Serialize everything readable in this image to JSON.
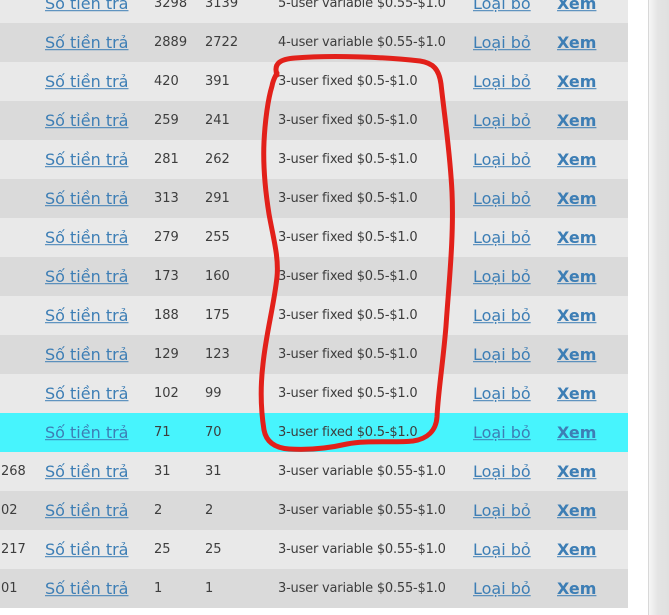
{
  "colors": {
    "row_light": "#e9e9e9",
    "row_dark": "#dadada",
    "row_highlight_cyan": "#47f4fd",
    "link_blue": "#3d7eb5",
    "text_dark": "#3d3d3d",
    "annotation_red": "#e2201a",
    "page_background": "#ffffff"
  },
  "table": {
    "pay_link_label": "Số tiền trả",
    "remove_link_label": "Loại bỏ",
    "view_link_label": "Xem",
    "rows": [
      {
        "left_value": "",
        "num1": "3298",
        "num2": "3139",
        "plan": "5-user variable $0.55-$1.0",
        "bg": "light",
        "selected": false
      },
      {
        "left_value": "",
        "num1": "2889",
        "num2": "2722",
        "plan": "4-user variable $0.55-$1.0",
        "bg": "dark",
        "selected": false
      },
      {
        "left_value": "",
        "num1": "420",
        "num2": "391",
        "plan": "3-user fixed $0.5-$1.0",
        "bg": "light",
        "selected": false
      },
      {
        "left_value": "",
        "num1": "259",
        "num2": "241",
        "plan": "3-user fixed $0.5-$1.0",
        "bg": "dark",
        "selected": false
      },
      {
        "left_value": "",
        "num1": "281",
        "num2": "262",
        "plan": "3-user fixed $0.5-$1.0",
        "bg": "light",
        "selected": false
      },
      {
        "left_value": "",
        "num1": "313",
        "num2": "291",
        "plan": "3-user fixed $0.5-$1.0",
        "bg": "dark",
        "selected": false
      },
      {
        "left_value": "",
        "num1": "279",
        "num2": "255",
        "plan": "3-user fixed $0.5-$1.0",
        "bg": "light",
        "selected": false
      },
      {
        "left_value": "",
        "num1": "173",
        "num2": "160",
        "plan": "3-user fixed $0.5-$1.0",
        "bg": "dark",
        "selected": false
      },
      {
        "left_value": "",
        "num1": "188",
        "num2": "175",
        "plan": "3-user fixed $0.5-$1.0",
        "bg": "light",
        "selected": false
      },
      {
        "left_value": "",
        "num1": "129",
        "num2": "123",
        "plan": "3-user fixed $0.5-$1.0",
        "bg": "dark",
        "selected": false
      },
      {
        "left_value": "",
        "num1": "102",
        "num2": "99",
        "plan": "3-user fixed $0.5-$1.0",
        "bg": "light",
        "selected": false
      },
      {
        "left_value": "",
        "num1": "71",
        "num2": "70",
        "plan": "3-user fixed $0.5-$1.0",
        "bg": "highlight",
        "selected": true
      },
      {
        "left_value": "268",
        "num1": "31",
        "num2": "31",
        "plan": "3-user variable $0.55-$1.0",
        "bg": "light",
        "selected": false
      },
      {
        "left_value": "02",
        "num1": "2",
        "num2": "2",
        "plan": "3-user variable $0.55-$1.0",
        "bg": "dark",
        "selected": false
      },
      {
        "left_value": "217",
        "num1": "25",
        "num2": "25",
        "plan": "3-user variable $0.55-$1.0",
        "bg": "light",
        "selected": false
      },
      {
        "left_value": "01",
        "num1": "1",
        "num2": "1",
        "plan": "3-user variable $0.55-$1.0",
        "bg": "dark",
        "selected": false
      }
    ]
  },
  "annotation": {
    "shape": "hand-drawn red rounded rectangle circling the 3-user fixed $0.5-$1.0 plan cells",
    "color": "#e2201a",
    "stroke_width": 5
  }
}
